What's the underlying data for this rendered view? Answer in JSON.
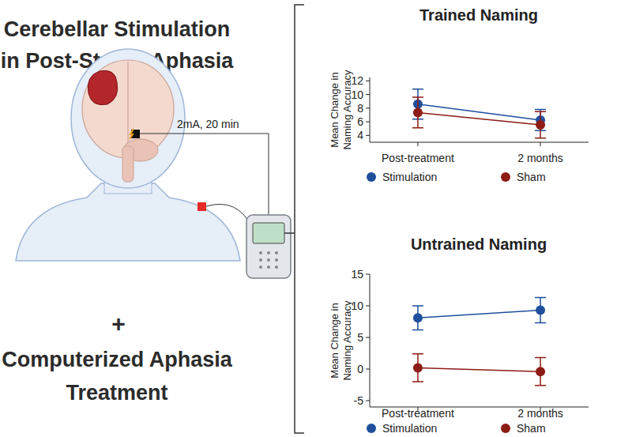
{
  "illustration": {
    "title_lines": [
      "Cerebellar Stimulation",
      "in Post-Stroke Aphasia"
    ],
    "stimulation_label": "2mA, 20 min",
    "plus": "+",
    "treatment_lines": [
      "Computerized Aphasia",
      "Treatment"
    ]
  },
  "chart_data": [
    {
      "type": "line",
      "title": "Trained Naming",
      "y_label": "Mean Change in Naming Accuracy",
      "categories": [
        "Post-treatment",
        "2 months"
      ],
      "ylim": [
        3,
        12.5
      ],
      "yticks": [
        4,
        6,
        8,
        10,
        12
      ],
      "legend": "bottom",
      "marker": "circle",
      "series": [
        {
          "name": "Stimulation",
          "color": "#1f4f9c",
          "values": [
            8.6,
            6.25
          ],
          "errors": [
            2.2,
            1.55
          ]
        },
        {
          "name": "Sham",
          "color": "#8e1c16",
          "values": [
            7.35,
            5.55
          ],
          "errors": [
            2.25,
            1.95
          ]
        }
      ]
    },
    {
      "type": "line",
      "title": "Untrained Naming",
      "y_label": "Mean Change in Naming Accuracy",
      "categories": [
        "Post-treatment",
        "2 months"
      ],
      "ylim": [
        -6,
        15
      ],
      "yticks": [
        -5,
        0,
        5,
        10,
        15
      ],
      "legend": "bottom",
      "marker": "circle",
      "series": [
        {
          "name": "Stimulation",
          "color": "#1f4f9c",
          "values": [
            8.1,
            9.3
          ],
          "errors": [
            1.9,
            2.0
          ]
        },
        {
          "name": "Sham",
          "color": "#8e1c16",
          "values": [
            0.2,
            -0.4
          ],
          "errors": [
            2.2,
            2.2
          ]
        }
      ]
    }
  ]
}
